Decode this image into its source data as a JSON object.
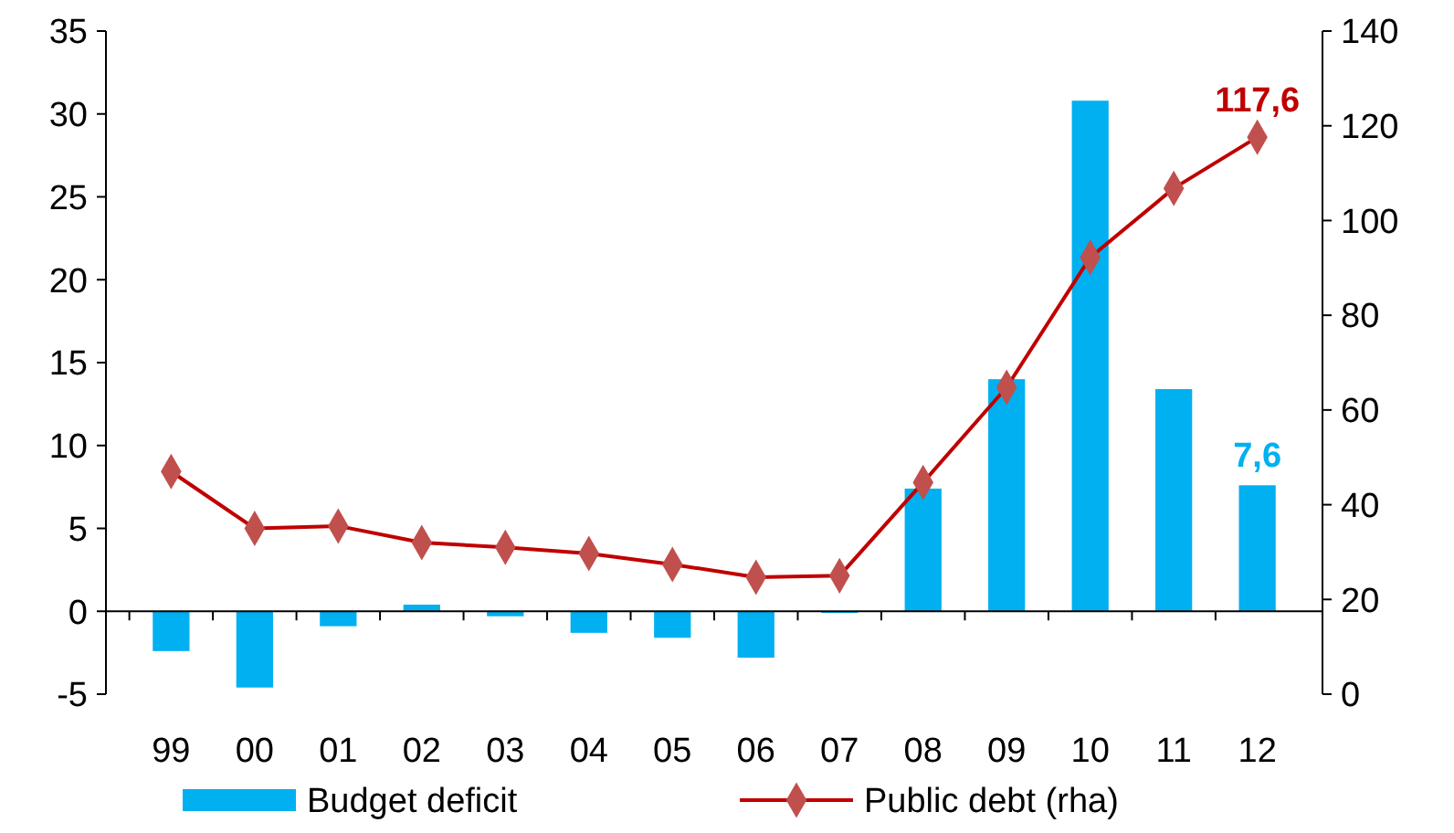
{
  "chart_data": {
    "type": "bar",
    "categories": [
      "99",
      "00",
      "01",
      "02",
      "03",
      "04",
      "05",
      "06",
      "07",
      "08",
      "09",
      "10",
      "11",
      "12"
    ],
    "series": [
      {
        "name": "Budget deficit",
        "color": "#00b0f0",
        "values": [
          -2.4,
          -4.6,
          -0.9,
          0.4,
          -0.3,
          -1.3,
          -1.6,
          -2.8,
          -0.1,
          7.4,
          14.0,
          30.8,
          13.4,
          7.6
        ],
        "value_labels": [
          null,
          null,
          null,
          null,
          null,
          null,
          null,
          null,
          null,
          null,
          null,
          null,
          null,
          "7,6"
        ]
      },
      {
        "name": "Public debt (rha)",
        "type": "line",
        "axis": "y2",
        "color": "#c0504d",
        "marker": "diamond",
        "values": [
          47,
          35,
          35.5,
          32,
          31,
          29.7,
          27.4,
          24.7,
          25,
          44.7,
          64.8,
          92.2,
          106.8,
          117.6
        ],
        "value_labels": [
          null,
          null,
          null,
          null,
          null,
          null,
          null,
          null,
          null,
          null,
          null,
          null,
          null,
          "117,6"
        ]
      }
    ],
    "ylim": [
      -5,
      35
    ],
    "yticks": [
      -5,
      0,
      5,
      10,
      15,
      20,
      25,
      30,
      35
    ],
    "y2lim": [
      0,
      140
    ],
    "y2ticks": [
      0,
      20,
      40,
      60,
      80,
      100,
      120,
      140
    ],
    "legend": "bottom"
  }
}
